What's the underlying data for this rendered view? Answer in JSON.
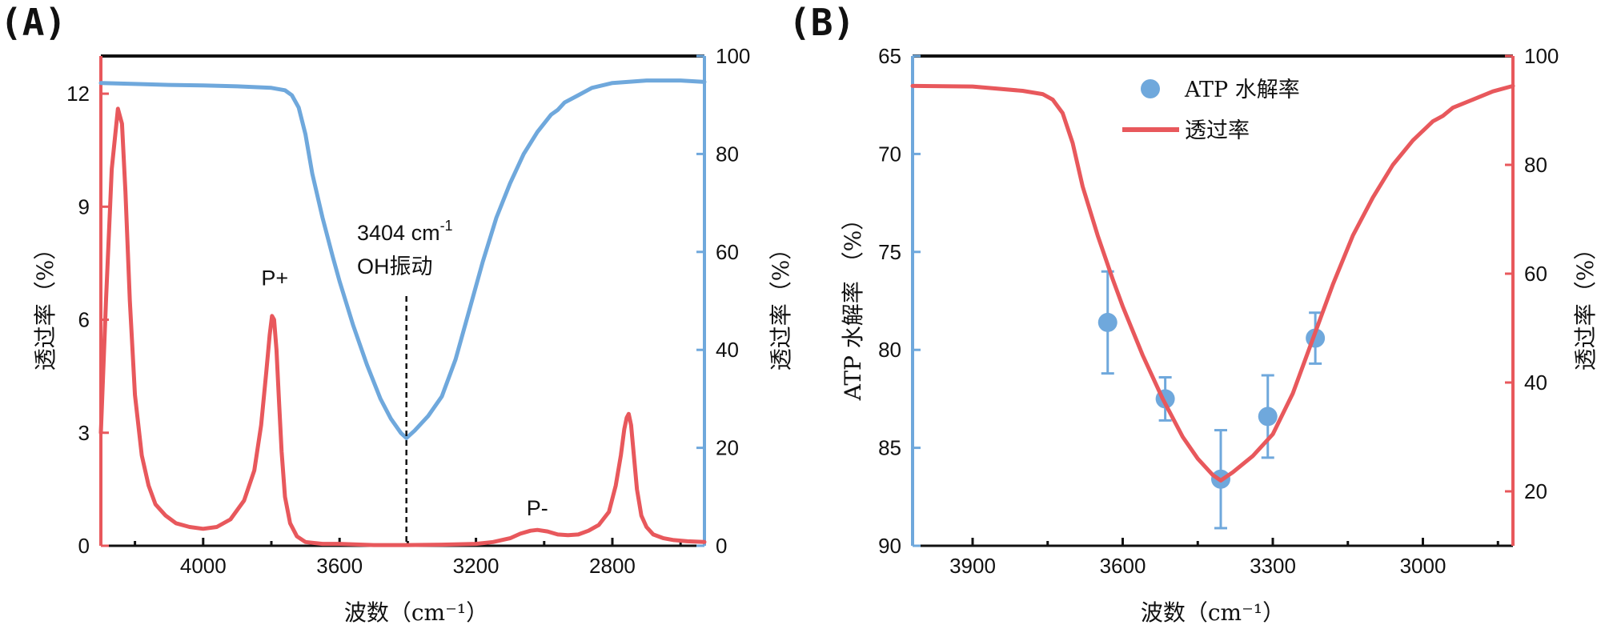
{
  "colors": {
    "red": "#e8585c",
    "blue": "#6fa8dc",
    "black": "#111111"
  },
  "chart_data": [
    {
      "panel_label": "(A)",
      "type": "line",
      "xlabel": "波数（cm⁻¹）",
      "ylabel_left": "透过率（%）",
      "ylabel_right": "透过率（%）",
      "xlim": [
        4300,
        2530
      ],
      "x_ticks": [
        "4000",
        "3600",
        "3200",
        "2800"
      ],
      "ylim_left": [
        0,
        13
      ],
      "y_ticks_left": [
        "0",
        "3",
        "6",
        "9",
        "12"
      ],
      "ylim_right": [
        0,
        100
      ],
      "y_ticks_right": [
        "0",
        "20",
        "40",
        "60",
        "80",
        "100"
      ],
      "annotation_line1": "3404 cm",
      "annotation_sup": "-1",
      "annotation_line2": "OH振动",
      "annotation_x": 3404,
      "peak_labels": [
        {
          "text": "P+",
          "x": 3790,
          "y": 6.7
        },
        {
          "text": "P-",
          "x": 3020,
          "y": 0.6
        }
      ],
      "series": [
        {
          "name": "red-spectrum",
          "axis": "left",
          "color": "#e8585c",
          "x": [
            4300,
            4285,
            4268,
            4250,
            4238,
            4228,
            4215,
            4200,
            4180,
            4160,
            4140,
            4110,
            4080,
            4040,
            4000,
            3960,
            3920,
            3880,
            3850,
            3830,
            3815,
            3805,
            3798,
            3792,
            3785,
            3778,
            3770,
            3760,
            3745,
            3725,
            3700,
            3650,
            3600,
            3500,
            3404,
            3300,
            3200,
            3150,
            3100,
            3070,
            3040,
            3020,
            2990,
            2960,
            2930,
            2900,
            2870,
            2840,
            2810,
            2790,
            2775,
            2765,
            2758,
            2752,
            2745,
            2738,
            2728,
            2715,
            2700,
            2680,
            2650,
            2620,
            2580,
            2530
          ],
          "y": [
            3.0,
            6.5,
            10.0,
            11.6,
            11.2,
            9.4,
            6.5,
            4.0,
            2.4,
            1.6,
            1.1,
            0.8,
            0.6,
            0.5,
            0.45,
            0.5,
            0.7,
            1.2,
            2.0,
            3.2,
            4.6,
            5.6,
            6.1,
            6.0,
            5.2,
            3.9,
            2.5,
            1.3,
            0.6,
            0.25,
            0.1,
            0.05,
            0.05,
            0.02,
            0.02,
            0.03,
            0.05,
            0.1,
            0.2,
            0.32,
            0.4,
            0.42,
            0.38,
            0.3,
            0.28,
            0.3,
            0.4,
            0.55,
            0.9,
            1.6,
            2.4,
            3.1,
            3.4,
            3.5,
            3.2,
            2.5,
            1.5,
            0.8,
            0.5,
            0.3,
            0.2,
            0.15,
            0.12,
            0.1
          ]
        },
        {
          "name": "blue-transmittance",
          "axis": "right",
          "color": "#6fa8dc",
          "x": [
            4300,
            4200,
            4100,
            4000,
            3900,
            3800,
            3760,
            3740,
            3720,
            3700,
            3680,
            3650,
            3620,
            3600,
            3560,
            3520,
            3480,
            3450,
            3420,
            3404,
            3380,
            3340,
            3300,
            3260,
            3220,
            3180,
            3140,
            3100,
            3060,
            3020,
            2980,
            2960,
            2940,
            2900,
            2860,
            2800,
            2700,
            2600,
            2530
          ],
          "y": [
            94.5,
            94.3,
            94.1,
            94.0,
            93.8,
            93.5,
            93.0,
            92.0,
            89.5,
            84.0,
            76.0,
            67.0,
            59.0,
            54.0,
            45.0,
            37.0,
            30.0,
            26.0,
            23.0,
            22.0,
            23.5,
            26.5,
            30.5,
            38.0,
            48.0,
            58.0,
            67.0,
            74.0,
            80.0,
            84.5,
            88.0,
            89.0,
            90.5,
            92.0,
            93.5,
            94.5,
            95.0,
            95.0,
            94.7
          ]
        }
      ]
    },
    {
      "panel_label": "(B)",
      "type": "line+scatter",
      "xlabel": "波数（cm⁻¹）",
      "ylabel_left": "ATP 水解率 （%）",
      "ylabel_right": "透过率（%）",
      "xlim": [
        4020,
        2820
      ],
      "x_ticks": [
        "3900",
        "3600",
        "3300",
        "3000"
      ],
      "ylim_left": [
        65,
        90
      ],
      "left_axis_inverted": true,
      "y_ticks_left": [
        "65",
        "70",
        "75",
        "80",
        "85",
        "90"
      ],
      "ylim_right": [
        10,
        100
      ],
      "y_ticks_right": [
        "20",
        "40",
        "60",
        "80",
        "100"
      ],
      "legend": [
        {
          "label": "ATP 水解率",
          "kind": "marker"
        },
        {
          "label": "透过率",
          "kind": "line"
        }
      ],
      "series": [
        {
          "name": "ATP 水解率",
          "axis": "left",
          "kind": "scatter",
          "color": "#6fa8dc",
          "x": [
            3630,
            3515,
            3404,
            3310,
            3215
          ],
          "y": [
            78.6,
            82.5,
            86.6,
            83.4,
            79.4
          ],
          "err": [
            2.6,
            1.1,
            2.5,
            2.1,
            1.3
          ]
        },
        {
          "name": "透过率",
          "axis": "right",
          "kind": "line",
          "color": "#e8585c",
          "x": [
            4020,
            3900,
            3800,
            3760,
            3740,
            3720,
            3700,
            3680,
            3650,
            3620,
            3600,
            3560,
            3520,
            3480,
            3450,
            3420,
            3404,
            3380,
            3340,
            3300,
            3260,
            3220,
            3180,
            3140,
            3100,
            3060,
            3020,
            2980,
            2960,
            2940,
            2900,
            2860,
            2820
          ],
          "y": [
            94.5,
            94.4,
            93.6,
            93.0,
            92.0,
            89.5,
            84.0,
            76.0,
            67.0,
            59.0,
            54.0,
            45.0,
            37.0,
            30.0,
            26.0,
            23.0,
            22.0,
            23.5,
            26.5,
            30.5,
            38.0,
            48.0,
            58.0,
            67.0,
            74.0,
            80.0,
            84.5,
            88.0,
            89.0,
            90.5,
            92.0,
            93.5,
            94.5
          ]
        }
      ]
    }
  ]
}
